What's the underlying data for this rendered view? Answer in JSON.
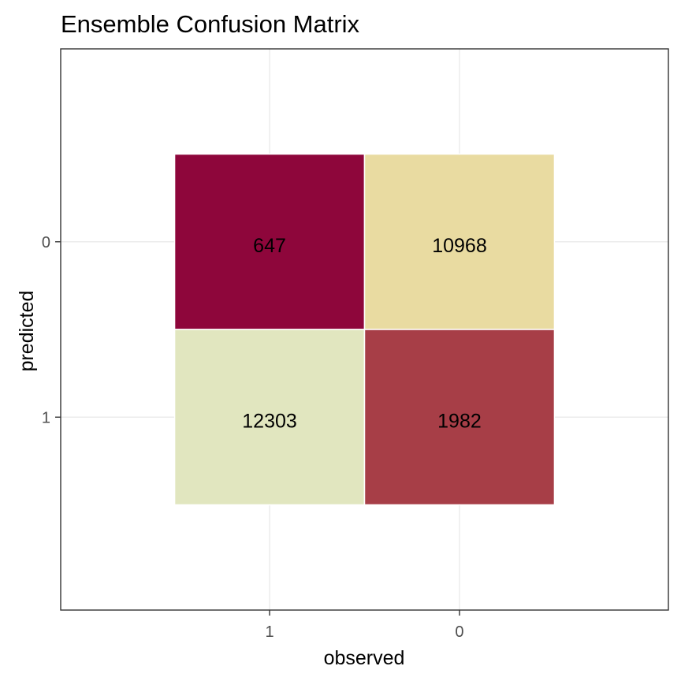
{
  "chart_data": {
    "type": "heatmap",
    "title": "Ensemble Confusion Matrix",
    "xlabel": "observed",
    "ylabel": "predicted",
    "x_categories": [
      "1",
      "0"
    ],
    "y_categories": [
      "0",
      "1"
    ],
    "cells": [
      {
        "observed": "1",
        "predicted": "0",
        "value": 647,
        "color": "#8e063b"
      },
      {
        "observed": "0",
        "predicted": "0",
        "value": 10968,
        "color": "#e9dba1"
      },
      {
        "observed": "1",
        "predicted": "1",
        "value": 12303,
        "color": "#e1e6bf"
      },
      {
        "observed": "0",
        "predicted": "1",
        "value": 1982,
        "color": "#a73e47"
      }
    ],
    "grid": true,
    "panel_border": true
  }
}
